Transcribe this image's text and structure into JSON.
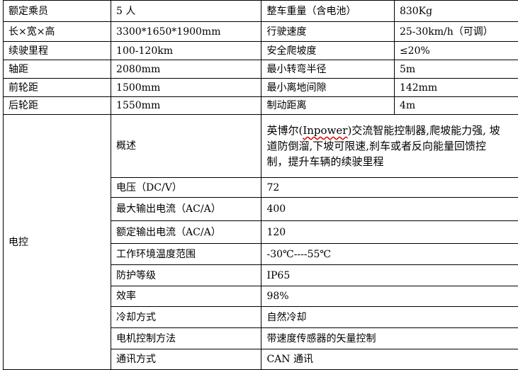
{
  "specs": [
    {
      "label": "额定乘员",
      "value": "5 人",
      "label2": "整车重量（含电池）",
      "value2": "830Kg"
    },
    {
      "label": "长×宽×高",
      "value": "3300*1650*1900mm",
      "label2": "行驶速度",
      "value2": "25-30km/h（可调）"
    },
    {
      "label": "续驶里程",
      "value": "100-120km",
      "label2": "安全爬坡度",
      "value2": "≤20%"
    },
    {
      "label": "轴距",
      "value": "2080mm",
      "label2": "最小转弯半径",
      "value2": "5m"
    },
    {
      "label": "前轮距",
      "value": "1500mm",
      "label2": "最小离地间隙",
      "value2": "142mm"
    },
    {
      "label": "后轮距",
      "value": "1550mm",
      "label2": "制动距离",
      "value2": "4m"
    }
  ],
  "electric": {
    "group_label": "电控",
    "overview_label": "概述",
    "overview_pre": "英博尔(",
    "overview_brand": "Inpower",
    "overview_post": ")交流智能控制器,爬坡能力强, 坡道防倒溜,下坡可限速,刹车或者反向能量回馈控制，提升车辆的续驶里程",
    "rows": [
      {
        "label": "电压（DC/V）",
        "value": "72"
      },
      {
        "label": "最大输出电流（AC/A）",
        "value": "400"
      },
      {
        "label": "额定输出电流（AC/A）",
        "value": "120"
      },
      {
        "label": "工作环境温度范围",
        "value": "-30℃----55℃"
      },
      {
        "label": "防护等级",
        "value": "IP65"
      },
      {
        "label": "效率",
        "value": "98%"
      },
      {
        "label": "冷却方式",
        "value": "自然冷却"
      },
      {
        "label": "电机控制方法",
        "value": "带速度传感器的矢量控制"
      },
      {
        "label": "通讯方式",
        "value": "CAN 通讯"
      }
    ]
  }
}
